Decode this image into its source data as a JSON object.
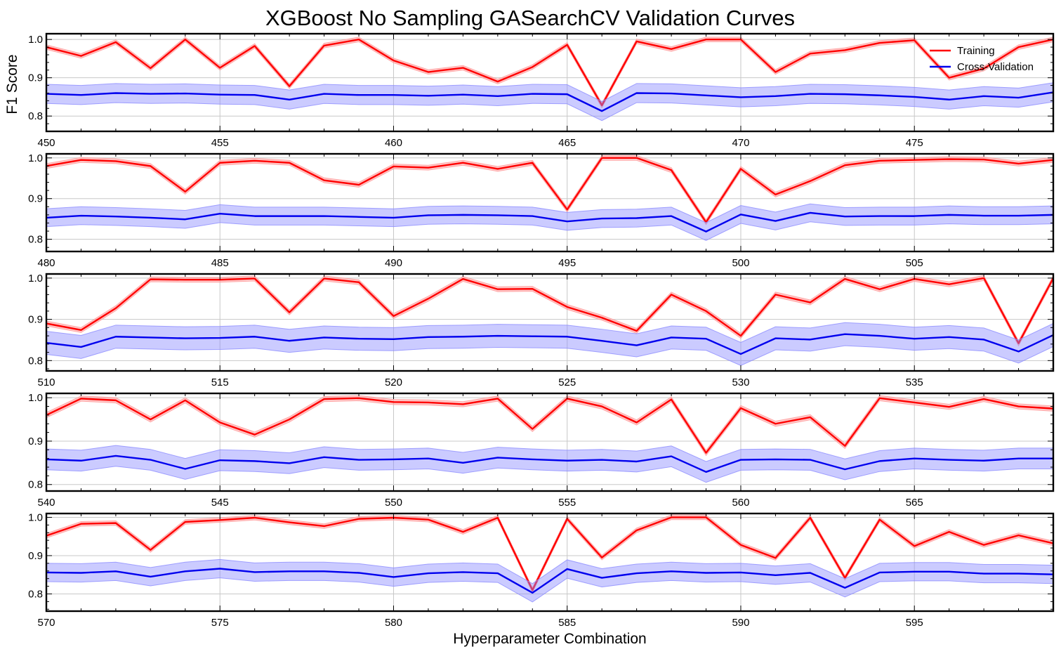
{
  "chart_data": {
    "type": "line",
    "title": "XGBoost No Sampling GASearchCV Validation Curves",
    "xlabel": "Hyperparameter Combination",
    "ylabel": "F1 Score",
    "legend": {
      "placement": "top-right",
      "entries": [
        "Training",
        "Cross-Validation"
      ]
    },
    "colors": {
      "training": "#ff0000",
      "training_band": "#ff9a9a",
      "cv": "#0000ee",
      "cv_band": "#8c8cff",
      "grid": "#c8c8c8",
      "frame": "#000000"
    },
    "grid": true,
    "yticks": [
      "0.8",
      "0.9",
      "1.0"
    ],
    "panels": [
      {
        "xlim": [
          450,
          479
        ],
        "ylim": [
          0.76,
          1.015
        ],
        "xticks": [
          "450",
          "455",
          "460",
          "465",
          "470",
          "475"
        ],
        "series": [
          {
            "name": "Training",
            "x": [
              450,
              451,
              452,
              453,
              454,
              455,
              456,
              457,
              458,
              459,
              460,
              461,
              462,
              463,
              464,
              465,
              466,
              467,
              468,
              469,
              470,
              471,
              472,
              473,
              474,
              475,
              476,
              477,
              478,
              479
            ],
            "values": [
              0.98,
              0.957,
              0.993,
              0.925,
              1.0,
              0.926,
              0.983,
              0.878,
              0.984,
              1.0,
              0.945,
              0.915,
              0.926,
              0.89,
              0.928,
              0.986,
              0.828,
              0.995,
              0.975,
              1.0,
              1.0,
              0.915,
              0.963,
              0.972,
              0.991,
              0.998,
              0.9,
              0.924,
              0.98,
              1.0
            ],
            "band": 0.006
          },
          {
            "name": "Cross-Validation",
            "x": [
              450,
              451,
              452,
              453,
              454,
              455,
              456,
              457,
              458,
              459,
              460,
              461,
              462,
              463,
              464,
              465,
              466,
              467,
              468,
              469,
              470,
              471,
              472,
              473,
              474,
              475,
              476,
              477,
              478,
              479
            ],
            "values": [
              0.858,
              0.855,
              0.86,
              0.858,
              0.859,
              0.856,
              0.855,
              0.843,
              0.858,
              0.855,
              0.855,
              0.853,
              0.856,
              0.852,
              0.858,
              0.857,
              0.813,
              0.86,
              0.859,
              0.854,
              0.849,
              0.852,
              0.858,
              0.857,
              0.854,
              0.85,
              0.843,
              0.852,
              0.848,
              0.862
            ],
            "band": 0.025
          }
        ]
      },
      {
        "xlim": [
          480,
          509
        ],
        "ylim": [
          0.77,
          1.01
        ],
        "xticks": [
          "480",
          "485",
          "490",
          "495",
          "500",
          "505"
        ],
        "series": [
          {
            "name": "Training",
            "x": [
              480,
              481,
              482,
              483,
              484,
              485,
              486,
              487,
              488,
              489,
              490,
              491,
              492,
              493,
              494,
              495,
              496,
              497,
              498,
              499,
              500,
              501,
              502,
              503,
              504,
              505,
              506,
              507,
              508,
              509
            ],
            "values": [
              0.98,
              0.995,
              0.992,
              0.98,
              0.917,
              0.988,
              0.993,
              0.988,
              0.945,
              0.934,
              0.979,
              0.976,
              0.988,
              0.973,
              0.988,
              0.873,
              1.0,
              1.0,
              0.97,
              0.842,
              0.973,
              0.91,
              0.943,
              0.982,
              0.993,
              0.995,
              0.997,
              0.996,
              0.986,
              0.995
            ],
            "band": 0.006
          },
          {
            "name": "Cross-Validation",
            "x": [
              480,
              481,
              482,
              483,
              484,
              485,
              486,
              487,
              488,
              489,
              490,
              491,
              492,
              493,
              494,
              495,
              496,
              497,
              498,
              499,
              500,
              501,
              502,
              503,
              504,
              505,
              506,
              507,
              508,
              509
            ],
            "values": [
              0.853,
              0.858,
              0.856,
              0.853,
              0.849,
              0.863,
              0.857,
              0.857,
              0.857,
              0.855,
              0.853,
              0.859,
              0.86,
              0.859,
              0.857,
              0.844,
              0.851,
              0.852,
              0.857,
              0.819,
              0.861,
              0.845,
              0.865,
              0.856,
              0.857,
              0.857,
              0.86,
              0.858,
              0.858,
              0.86
            ],
            "band": 0.022
          }
        ]
      },
      {
        "xlim": [
          510,
          539
        ],
        "ylim": [
          0.775,
          1.01
        ],
        "xticks": [
          "510",
          "515",
          "520",
          "525",
          "530",
          "535"
        ],
        "series": [
          {
            "name": "Training",
            "x": [
              510,
              511,
              512,
              513,
              514,
              515,
              516,
              517,
              518,
              519,
              520,
              521,
              522,
              523,
              524,
              525,
              526,
              527,
              528,
              529,
              530,
              531,
              532,
              533,
              534,
              535,
              536,
              537,
              538,
              539
            ],
            "values": [
              0.89,
              0.874,
              0.927,
              0.997,
              0.996,
              0.996,
              0.999,
              0.917,
              0.999,
              0.99,
              0.908,
              0.95,
              0.998,
              0.973,
              0.974,
              0.93,
              0.904,
              0.872,
              0.96,
              0.92,
              0.86,
              0.96,
              0.941,
              0.998,
              0.973,
              0.998,
              0.985,
              1.0,
              0.842,
              1.0
            ],
            "band": 0.006
          },
          {
            "name": "Cross-Validation",
            "x": [
              510,
              511,
              512,
              513,
              514,
              515,
              516,
              517,
              518,
              519,
              520,
              521,
              522,
              523,
              524,
              525,
              526,
              527,
              528,
              529,
              530,
              531,
              532,
              533,
              534,
              535,
              536,
              537,
              538,
              539
            ],
            "values": [
              0.843,
              0.833,
              0.858,
              0.856,
              0.854,
              0.855,
              0.858,
              0.848,
              0.856,
              0.853,
              0.852,
              0.857,
              0.858,
              0.86,
              0.859,
              0.858,
              0.848,
              0.837,
              0.856,
              0.853,
              0.816,
              0.854,
              0.851,
              0.864,
              0.86,
              0.853,
              0.857,
              0.851,
              0.822,
              0.862
            ],
            "band": 0.028
          }
        ]
      },
      {
        "xlim": [
          540,
          569
        ],
        "ylim": [
          0.785,
          1.01
        ],
        "xticks": [
          "540",
          "545",
          "550",
          "555",
          "560",
          "565"
        ],
        "series": [
          {
            "name": "Training",
            "x": [
              540,
              541,
              542,
              543,
              544,
              545,
              546,
              547,
              548,
              549,
              550,
              551,
              552,
              553,
              554,
              555,
              556,
              557,
              558,
              559,
              560,
              561,
              562,
              563,
              564,
              565,
              566,
              567,
              568,
              569
            ],
            "values": [
              0.96,
              0.998,
              0.994,
              0.95,
              0.994,
              0.943,
              0.915,
              0.95,
              0.997,
              0.999,
              0.99,
              0.989,
              0.985,
              0.998,
              0.928,
              0.998,
              0.98,
              0.943,
              0.996,
              0.873,
              0.976,
              0.94,
              0.955,
              0.889,
              0.999,
              0.989,
              0.979,
              0.997,
              0.98,
              0.975
            ],
            "band": 0.006
          },
          {
            "name": "Cross-Validation",
            "x": [
              540,
              541,
              542,
              543,
              544,
              545,
              546,
              547,
              548,
              549,
              550,
              551,
              552,
              553,
              554,
              555,
              556,
              557,
              558,
              559,
              560,
              561,
              562,
              563,
              564,
              565,
              566,
              567,
              568,
              569
            ],
            "values": [
              0.858,
              0.855,
              0.866,
              0.857,
              0.836,
              0.856,
              0.854,
              0.849,
              0.863,
              0.857,
              0.858,
              0.86,
              0.85,
              0.862,
              0.858,
              0.855,
              0.857,
              0.853,
              0.865,
              0.829,
              0.857,
              0.858,
              0.857,
              0.835,
              0.854,
              0.86,
              0.857,
              0.855,
              0.86,
              0.86
            ],
            "band": 0.024
          }
        ]
      },
      {
        "xlim": [
          570,
          599
        ],
        "ylim": [
          0.755,
          1.01
        ],
        "xticks": [
          "570",
          "575",
          "580",
          "585",
          "590",
          "595"
        ],
        "series": [
          {
            "name": "Training",
            "x": [
              570,
              571,
              572,
              573,
              574,
              575,
              576,
              577,
              578,
              579,
              580,
              581,
              582,
              583,
              584,
              585,
              586,
              587,
              588,
              589,
              590,
              591,
              592,
              593,
              594,
              595,
              596,
              597,
              598,
              599
            ],
            "values": [
              0.952,
              0.983,
              0.985,
              0.915,
              0.988,
              0.993,
              0.999,
              0.987,
              0.977,
              0.996,
              0.999,
              0.994,
              0.962,
              0.999,
              0.81,
              0.996,
              0.895,
              0.966,
              1.0,
              1.0,
              0.928,
              0.894,
              0.999,
              0.842,
              0.994,
              0.925,
              0.962,
              0.928,
              0.953,
              0.932
            ],
            "band": 0.006
          },
          {
            "name": "Cross-Validation",
            "x": [
              570,
              571,
              572,
              573,
              574,
              575,
              576,
              577,
              578,
              579,
              580,
              581,
              582,
              583,
              584,
              585,
              586,
              587,
              588,
              589,
              590,
              591,
              592,
              593,
              594,
              595,
              596,
              597,
              598,
              599
            ],
            "values": [
              0.856,
              0.855,
              0.859,
              0.845,
              0.859,
              0.866,
              0.857,
              0.859,
              0.859,
              0.855,
              0.844,
              0.854,
              0.857,
              0.854,
              0.803,
              0.865,
              0.842,
              0.854,
              0.859,
              0.855,
              0.856,
              0.849,
              0.855,
              0.816,
              0.856,
              0.858,
              0.858,
              0.853,
              0.853,
              0.851
            ],
            "band": 0.024
          }
        ]
      }
    ]
  }
}
